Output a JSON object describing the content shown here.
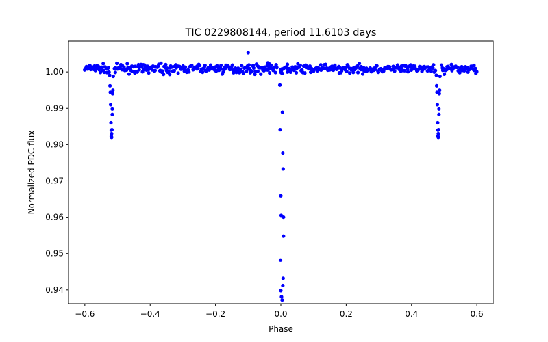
{
  "chart_data": {
    "type": "scatter",
    "title": "TIC 0229808144, period 11.6103 days",
    "xlabel": "Phase",
    "ylabel": "Normalized PDC flux",
    "xlim": [
      -0.65,
      0.65
    ],
    "ylim": [
      0.9362,
      1.0085
    ],
    "x_ticks": [
      -0.6,
      -0.4,
      -0.2,
      0.0,
      0.2,
      0.4,
      0.6
    ],
    "x_tick_labels": [
      "−0.6",
      "−0.4",
      "−0.2",
      "0.0",
      "0.2",
      "0.4",
      "0.6"
    ],
    "y_ticks": [
      0.94,
      0.95,
      0.96,
      0.97,
      0.98,
      0.99,
      1.0
    ],
    "y_tick_labels": [
      "0.94",
      "0.95",
      "0.96",
      "0.97",
      "0.98",
      "0.99",
      "1.00"
    ],
    "grid": false,
    "series": [
      {
        "name": "PDC flux",
        "color": "#0000ff",
        "marker": "circle",
        "baseline": {
          "level": 1.0009,
          "scatter": 0.0006,
          "x_min": -0.6,
          "x_max": 0.6,
          "count": 520,
          "exclude": [
            [
              -0.526,
              -0.51
            ],
            [
              -0.012,
              0.014
            ],
            [
              0.474,
              0.49
            ]
          ]
        },
        "x": [
          -0.1,
          -0.04,
          -0.035,
          -0.03,
          0.02,
          -0.524,
          -0.523,
          -0.522,
          -0.521,
          -0.52,
          -0.519,
          -0.519,
          -0.518,
          -0.518,
          -0.517,
          -0.516,
          -0.516,
          -0.515,
          -0.514,
          -0.513,
          0.476,
          0.477,
          0.478,
          0.479,
          0.48,
          0.481,
          0.481,
          0.482,
          0.482,
          0.483,
          0.484,
          0.484,
          0.485,
          0.486,
          0.487,
          -0.003,
          -0.002,
          0.0,
          0.001,
          -0.001,
          0.0,
          0.002,
          0.004,
          0.006,
          0.007,
          0.008,
          0.008,
          0.007,
          0.006,
          0.005,
          0.004,
          0.003,
          0.002,
          0.001,
          0.0,
          -0.001,
          0.009
        ],
        "y": [
          1.0053,
          1.0025,
          1.0022,
          1.0018,
          1.0021,
          0.9991,
          0.9962,
          0.9944,
          0.991,
          0.986,
          0.984,
          0.9823,
          0.982,
          0.983,
          0.9841,
          0.9883,
          0.9898,
          0.994,
          0.995,
          0.9988,
          0.9991,
          0.9962,
          0.9944,
          0.991,
          0.986,
          0.984,
          0.9823,
          0.982,
          0.983,
          0.9841,
          0.9883,
          0.9898,
          0.994,
          0.995,
          0.9988,
          0.9964,
          0.9841,
          0.9659,
          0.9605,
          0.9482,
          0.9398,
          0.9381,
          0.9372,
          0.9412,
          0.9432,
          0.9548,
          0.96,
          0.9733,
          0.9777,
          0.9889,
          0.9996,
          1.0008,
          1.0004,
          0.9998,
          1.0002,
          1.0006,
          1.001
        ]
      }
    ]
  }
}
